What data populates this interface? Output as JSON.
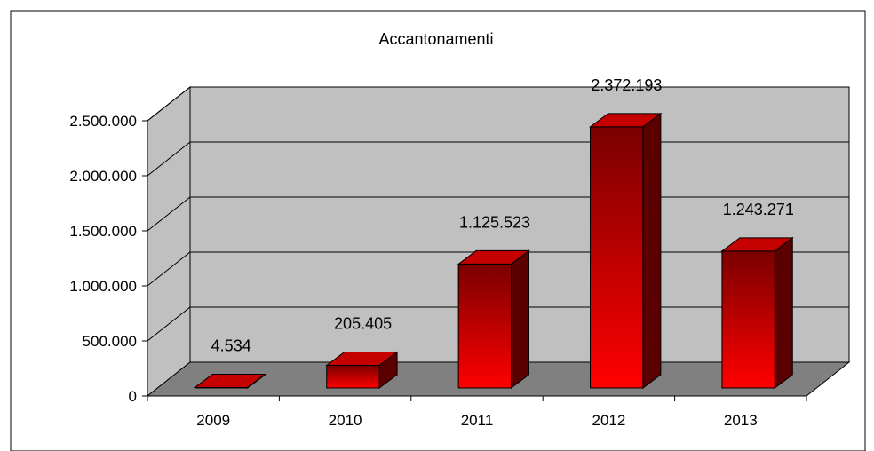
{
  "chart_data": {
    "type": "bar",
    "title": "Accantonamenti",
    "categories": [
      "2009",
      "2010",
      "2011",
      "2012",
      "2013"
    ],
    "values": [
      4534,
      205405,
      1125523,
      2372193,
      1243271
    ],
    "data_labels": [
      "4.534",
      "205.405",
      "1.125.523",
      "2.372.193",
      "1.243.271"
    ],
    "ylim": [
      0,
      2500000
    ],
    "yticks": [
      0,
      500000,
      1000000,
      1500000,
      2000000,
      2500000
    ],
    "ytick_labels": [
      "0",
      "500.000",
      "1.000.000",
      "1.500.000",
      "2.000.000",
      "2.500.000"
    ],
    "xlabel": "",
    "ylabel": "",
    "grid": true,
    "legend": "none",
    "style": "3d",
    "colors": {
      "bar_light": "#ff0000",
      "bar_dark": "#7a0000",
      "bar_top": "#c40000",
      "bar_side": "#5a0000",
      "wall": "#c0c0c0",
      "floor": "#808080",
      "side_wall": "#c0c0c0"
    }
  }
}
